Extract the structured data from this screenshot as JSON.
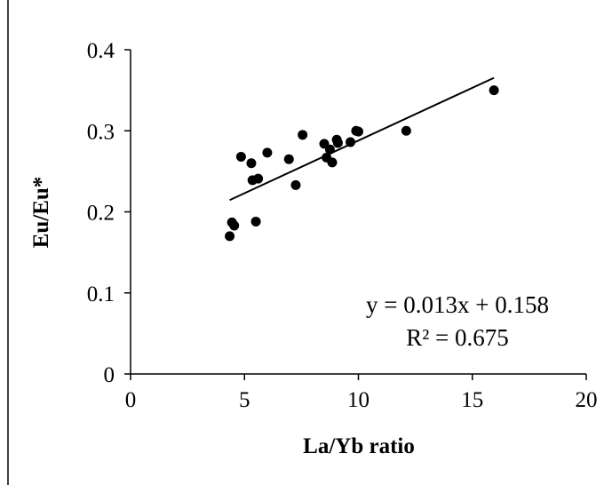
{
  "chart_data": {
    "type": "scatter",
    "title": "",
    "xlabel": "La/Yb ratio",
    "ylabel": "Eu/Eu*",
    "xlim": [
      0,
      20
    ],
    "ylim": [
      0,
      0.4
    ],
    "x_ticks": [
      0,
      5,
      10,
      15,
      20
    ],
    "y_ticks": [
      0,
      0.1,
      0.2,
      0.3,
      0.4
    ],
    "x_tick_labels": [
      "0",
      "5",
      "10",
      "15",
      "20"
    ],
    "y_tick_labels": [
      "0",
      "0.1",
      "0.2",
      "0.3",
      "0.4"
    ],
    "grid": false,
    "legend": "none",
    "series": [
      {
        "marker_color": "#000000",
        "points": [
          [
            4.35,
            0.17
          ],
          [
            4.45,
            0.187
          ],
          [
            4.55,
            0.183
          ],
          [
            4.85,
            0.268
          ],
          [
            5.3,
            0.26
          ],
          [
            5.35,
            0.239
          ],
          [
            5.5,
            0.188
          ],
          [
            5.6,
            0.241
          ],
          [
            6.0,
            0.273
          ],
          [
            6.95,
            0.265
          ],
          [
            7.25,
            0.233
          ],
          [
            7.55,
            0.295
          ],
          [
            8.5,
            0.284
          ],
          [
            8.6,
            0.267
          ],
          [
            8.75,
            0.277
          ],
          [
            8.85,
            0.261
          ],
          [
            9.05,
            0.289
          ],
          [
            9.1,
            0.285
          ],
          [
            9.65,
            0.286
          ],
          [
            9.9,
            0.3
          ],
          [
            10.0,
            0.299
          ],
          [
            12.1,
            0.3
          ],
          [
            15.95,
            0.35
          ]
        ]
      }
    ],
    "trendline": {
      "slope": 0.013,
      "intercept": 0.158,
      "x_range": [
        4.35,
        15.95
      ],
      "color": "#000000"
    },
    "annotations": [
      "y = 0.013x + 0.158",
      "R² = 0.675"
    ]
  }
}
